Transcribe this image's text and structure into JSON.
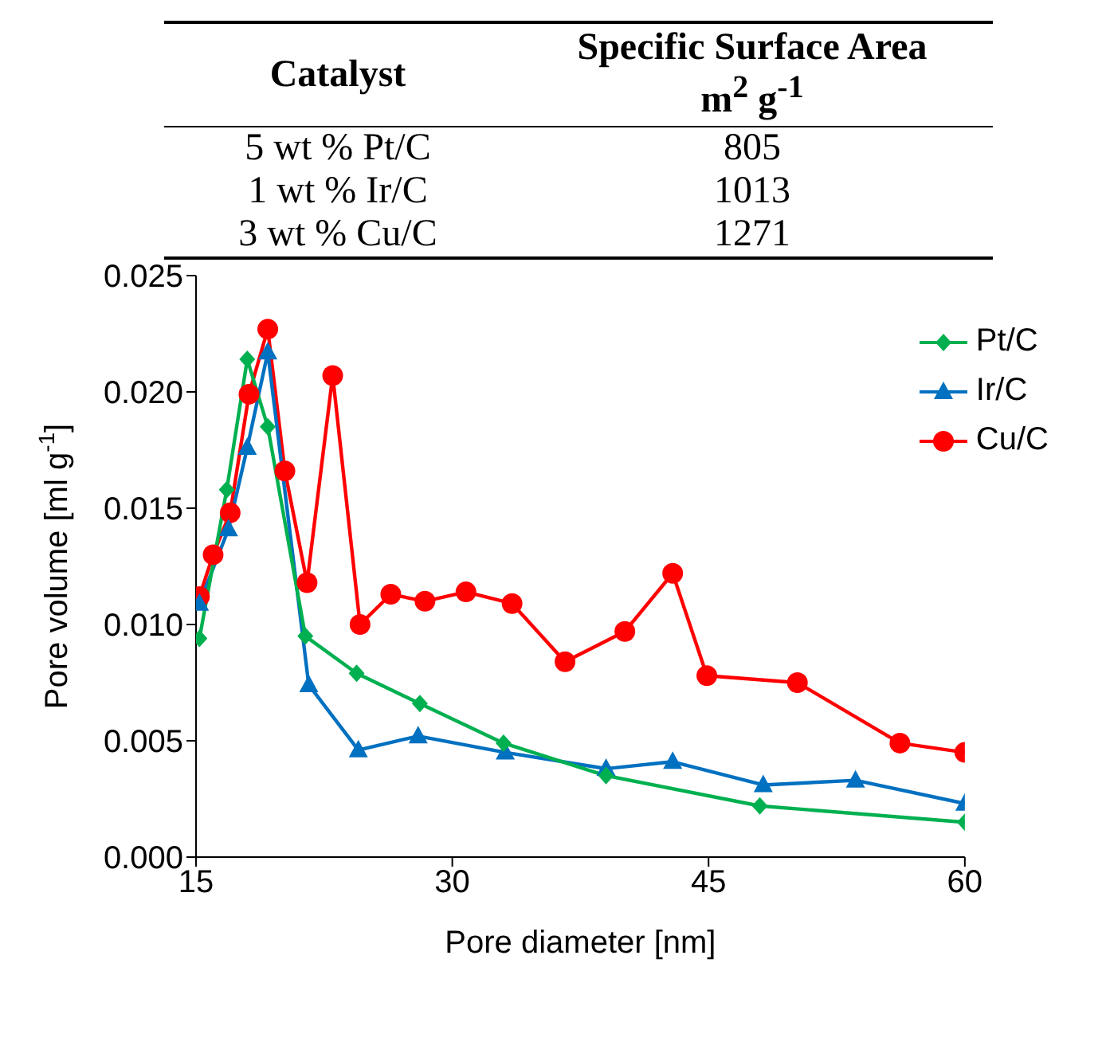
{
  "chart_data": [
    {
      "type": "other",
      "xlabel": "Catalyst",
      "ylabel": "Specific Surface Area m$^{2}$ g$^{-1}$",
      "categories": [
        "5 wt % Pt/C",
        "1 wt % Ir/C",
        "3 wt % Cu/C"
      ],
      "values": [
        805,
        1013,
        1271
      ],
      "data_labels": true
    },
    {
      "type": "line",
      "xlabel": "Pore diameter [nm]",
      "ylabel": "Pore volume [ml g$^{-1}$]",
      "xlim": [
        15,
        60
      ],
      "xticks": [
        15,
        30,
        45,
        60
      ],
      "ylim": [
        0,
        0.025
      ],
      "yticks": [
        {
          "value": 0,
          "label": "0.000"
        },
        {
          "value": 0.005,
          "label": "0.005"
        },
        {
          "value": 0.01,
          "label": "0.010"
        },
        {
          "value": 0.015,
          "label": "0.015"
        },
        {
          "value": 0.02,
          "label": "0.020"
        },
        {
          "value": 0.025,
          "label": "0.025"
        }
      ],
      "grid": false,
      "legend": "top right",
      "series": [
        {
          "name": "Pt/C",
          "color": "#00b050",
          "marker": "diamond",
          "x": [
            15.2,
            16.8,
            18.0,
            19.2,
            21.4,
            24.4,
            28.1,
            33.0,
            39.0,
            48.0,
            60
          ],
          "values": [
            0.0094,
            0.0158,
            0.0214,
            0.0185,
            0.0095,
            0.0079,
            0.0066,
            0.0049,
            0.0035,
            0.0022,
            0.0015
          ]
        },
        {
          "name": "Ir/C",
          "color": "#0070c0",
          "marker": "triangle",
          "x": [
            15.2,
            16.9,
            18.0,
            19.2,
            21.6,
            24.5,
            28.0,
            33.1,
            39.0,
            42.9,
            48.2,
            53.6,
            60
          ],
          "values": [
            0.0109,
            0.0141,
            0.0176,
            0.0217,
            0.0074,
            0.0046,
            0.0052,
            0.0045,
            0.0038,
            0.0041,
            0.0031,
            0.0033,
            0.0023
          ]
        },
        {
          "name": "Cu/C",
          "color": "#ff0000",
          "marker": "circle",
          "x": [
            15.2,
            16.0,
            17.0,
            18.1,
            19.2,
            20.2,
            21.5,
            23.0,
            24.6,
            26.4,
            28.4,
            30.8,
            33.5,
            36.6,
            40.1,
            42.9,
            44.9,
            50.2,
            56.2,
            60
          ],
          "values": [
            0.0112,
            0.013,
            0.0148,
            0.0199,
            0.0227,
            0.0166,
            0.0118,
            0.0207,
            0.01,
            0.0113,
            0.011,
            0.0114,
            0.0109,
            0.0084,
            0.0097,
            0.0122,
            0.0078,
            0.0075,
            0.0049,
            0.0045
          ]
        }
      ]
    }
  ]
}
